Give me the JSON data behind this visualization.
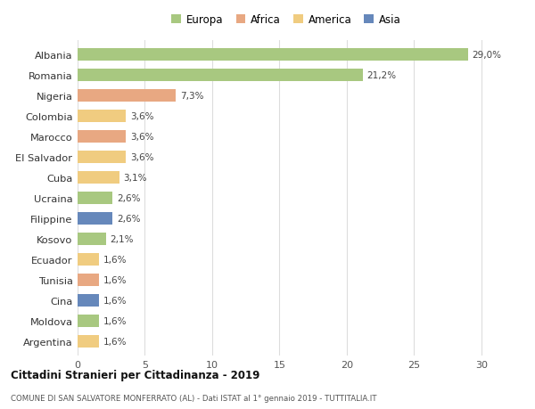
{
  "countries": [
    "Albania",
    "Romania",
    "Nigeria",
    "Colombia",
    "Marocco",
    "El Salvador",
    "Cuba",
    "Ucraina",
    "Filippine",
    "Kosovo",
    "Ecuador",
    "Tunisia",
    "Cina",
    "Moldova",
    "Argentina"
  ],
  "values": [
    29.0,
    21.2,
    7.3,
    3.6,
    3.6,
    3.6,
    3.1,
    2.6,
    2.6,
    2.1,
    1.6,
    1.6,
    1.6,
    1.6,
    1.6
  ],
  "labels": [
    "29,0%",
    "21,2%",
    "7,3%",
    "3,6%",
    "3,6%",
    "3,6%",
    "3,1%",
    "2,6%",
    "2,6%",
    "2,1%",
    "1,6%",
    "1,6%",
    "1,6%",
    "1,6%",
    "1,6%"
  ],
  "colors": [
    "#a8c880",
    "#a8c880",
    "#e8a882",
    "#f0cc80",
    "#e8a882",
    "#f0cc80",
    "#f0cc80",
    "#a8c880",
    "#6688bb",
    "#a8c880",
    "#f0cc80",
    "#e8a882",
    "#6688bb",
    "#a8c880",
    "#f0cc80"
  ],
  "legend_labels": [
    "Europa",
    "Africa",
    "America",
    "Asia"
  ],
  "legend_colors": [
    "#a8c880",
    "#e8a882",
    "#f0cc80",
    "#6688bb"
  ],
  "title": "Cittadini Stranieri per Cittadinanza - 2019",
  "subtitle": "COMUNE DI SAN SALVATORE MONFERRATO (AL) - Dati ISTAT al 1° gennaio 2019 - TUTTITALIA.IT",
  "xlim": [
    0,
    31
  ],
  "xticks": [
    0,
    5,
    10,
    15,
    20,
    25,
    30
  ],
  "background_color": "#ffffff",
  "grid_color": "#dddddd"
}
